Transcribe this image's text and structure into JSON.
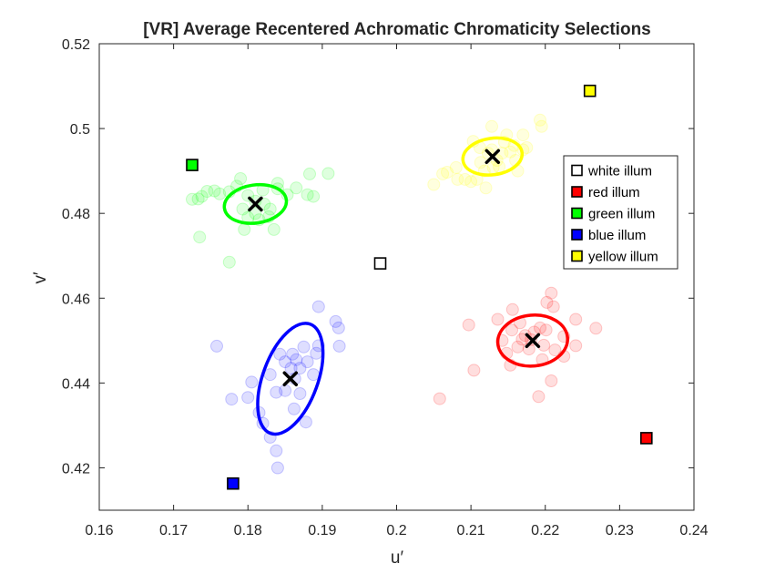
{
  "chart_data": {
    "type": "scatter",
    "title": "[VR] Average Recentered Achromatic Chromaticity Selections",
    "xlabel": "u′",
    "ylabel": "v′",
    "xlim": [
      0.16,
      0.24
    ],
    "ylim": [
      0.41,
      0.52
    ],
    "xticks": [
      0.16,
      0.17,
      0.18,
      0.19,
      0.2,
      0.21,
      0.22,
      0.23,
      0.24
    ],
    "yticks": [
      0.42,
      0.44,
      0.46,
      0.48,
      0.5,
      0.52
    ],
    "xtick_labels": [
      "0.16",
      "0.17",
      "0.18",
      "0.19",
      "0.2",
      "0.21",
      "0.22",
      "0.23",
      "0.24"
    ],
    "ytick_labels": [
      "0.42",
      "0.44",
      "0.46",
      "0.48",
      "0.5",
      "0.52"
    ],
    "grid": false,
    "legend_position": "right",
    "legend": [
      {
        "label": "white illum",
        "color": "#ffffff"
      },
      {
        "label": "red illum",
        "color": "#ff0000"
      },
      {
        "label": "green illum",
        "color": "#00ff00"
      },
      {
        "label": "blue illum",
        "color": "#0000ff"
      },
      {
        "label": "yellow illum",
        "color": "#ffff00"
      }
    ],
    "illuminants": [
      {
        "name": "white illum",
        "u": 0.1978,
        "v": 0.4682,
        "color": "#ffffff"
      },
      {
        "name": "red illum",
        "u": 0.2336,
        "v": 0.427,
        "color": "#ff0000"
      },
      {
        "name": "green illum",
        "u": 0.1725,
        "v": 0.4914,
        "color": "#00ff00"
      },
      {
        "name": "blue illum",
        "u": 0.178,
        "v": 0.4163,
        "color": "#0000ff"
      },
      {
        "name": "yellow illum",
        "u": 0.226,
        "v": 0.5089,
        "color": "#ffff00"
      }
    ],
    "means": [
      {
        "series": "red",
        "u": 0.2183,
        "v": 0.45,
        "color": "#ff0000"
      },
      {
        "series": "green",
        "u": 0.181,
        "v": 0.4822,
        "color": "#00ff00"
      },
      {
        "series": "blue",
        "u": 0.1857,
        "v": 0.441,
        "color": "#0000ff"
      },
      {
        "series": "yellow",
        "u": 0.2129,
        "v": 0.4934,
        "color": "#ffff00"
      }
    ],
    "ellipses": [
      {
        "series": "red",
        "cu": 0.2183,
        "cv": 0.45,
        "a": 0.0047,
        "b": 0.006,
        "rotation_deg": -5,
        "color": "#ff0000"
      },
      {
        "series": "green",
        "cu": 0.181,
        "cv": 0.4822,
        "a": 0.0042,
        "b": 0.0045,
        "rotation_deg": -8,
        "color": "#00ff00"
      },
      {
        "series": "blue",
        "cu": 0.1857,
        "cv": 0.441,
        "a": 0.0037,
        "b": 0.0137,
        "rotation_deg": 20,
        "color": "#0000ff"
      },
      {
        "series": "yellow",
        "cu": 0.2129,
        "cv": 0.4934,
        "a": 0.004,
        "b": 0.0043,
        "rotation_deg": -8,
        "color": "#ffff00"
      }
    ],
    "series": [
      {
        "series": "red",
        "color": "#ff0000",
        "points": [
          [
            0.2097,
            0.4537
          ],
          [
            0.2104,
            0.443
          ],
          [
            0.2058,
            0.4363
          ],
          [
            0.2136,
            0.455
          ],
          [
            0.2156,
            0.4573
          ],
          [
            0.2166,
            0.4542
          ],
          [
            0.2173,
            0.4512
          ],
          [
            0.2163,
            0.4485
          ],
          [
            0.2148,
            0.447
          ],
          [
            0.2153,
            0.4442
          ],
          [
            0.2181,
            0.4502
          ],
          [
            0.2193,
            0.453
          ],
          [
            0.2202,
            0.459
          ],
          [
            0.2208,
            0.4612
          ],
          [
            0.2211,
            0.458
          ],
          [
            0.2225,
            0.451
          ],
          [
            0.2241,
            0.455
          ],
          [
            0.2268,
            0.4529
          ],
          [
            0.2241,
            0.4488
          ],
          [
            0.2225,
            0.4463
          ],
          [
            0.2198,
            0.4489
          ],
          [
            0.2208,
            0.4405
          ],
          [
            0.2191,
            0.4368
          ],
          [
            0.2169,
            0.4503
          ],
          [
            0.2185,
            0.452
          ],
          [
            0.2178,
            0.448
          ],
          [
            0.2155,
            0.4525
          ],
          [
            0.2201,
            0.4525
          ],
          [
            0.2213,
            0.4478
          ],
          [
            0.2196,
            0.4455
          ],
          [
            0.2142,
            0.45
          ]
        ]
      },
      {
        "series": "green",
        "color": "#00ff00",
        "points": [
          [
            0.1725,
            0.4833
          ],
          [
            0.1733,
            0.4834
          ],
          [
            0.1738,
            0.484
          ],
          [
            0.1745,
            0.4852
          ],
          [
            0.1735,
            0.4744
          ],
          [
            0.1775,
            0.4685
          ],
          [
            0.1755,
            0.4853
          ],
          [
            0.1762,
            0.4846
          ],
          [
            0.1775,
            0.4851
          ],
          [
            0.1785,
            0.4864
          ],
          [
            0.179,
            0.4882
          ],
          [
            0.18,
            0.4842
          ],
          [
            0.181,
            0.4829
          ],
          [
            0.1822,
            0.4822
          ],
          [
            0.183,
            0.481
          ],
          [
            0.184,
            0.4858
          ],
          [
            0.1853,
            0.4844
          ],
          [
            0.1865,
            0.486
          ],
          [
            0.188,
            0.4844
          ],
          [
            0.1883,
            0.4893
          ],
          [
            0.1908,
            0.4894
          ],
          [
            0.1888,
            0.484
          ],
          [
            0.184,
            0.4871
          ],
          [
            0.1815,
            0.4785
          ],
          [
            0.18,
            0.479
          ],
          [
            0.1795,
            0.4762
          ],
          [
            0.1835,
            0.4762
          ],
          [
            0.1828,
            0.4792
          ],
          [
            0.182,
            0.4855
          ],
          [
            0.181,
            0.48
          ],
          [
            0.1793,
            0.481
          ]
        ]
      },
      {
        "series": "blue",
        "color": "#0000ff",
        "points": [
          [
            0.1758,
            0.4487
          ],
          [
            0.1778,
            0.4362
          ],
          [
            0.18,
            0.4366
          ],
          [
            0.1805,
            0.4402
          ],
          [
            0.1815,
            0.433
          ],
          [
            0.182,
            0.4305
          ],
          [
            0.183,
            0.442
          ],
          [
            0.1838,
            0.4378
          ],
          [
            0.183,
            0.4272
          ],
          [
            0.1838,
            0.424
          ],
          [
            0.184,
            0.42
          ],
          [
            0.185,
            0.445
          ],
          [
            0.1858,
            0.4435
          ],
          [
            0.1863,
            0.441
          ],
          [
            0.186,
            0.4468
          ],
          [
            0.187,
            0.4435
          ],
          [
            0.1875,
            0.4485
          ],
          [
            0.188,
            0.445
          ],
          [
            0.1888,
            0.442
          ],
          [
            0.1892,
            0.447
          ],
          [
            0.1895,
            0.4488
          ],
          [
            0.1895,
            0.458
          ],
          [
            0.1918,
            0.4545
          ],
          [
            0.1922,
            0.453
          ],
          [
            0.1923,
            0.4487
          ],
          [
            0.1878,
            0.4308
          ],
          [
            0.185,
            0.4382
          ],
          [
            0.1862,
            0.4339
          ],
          [
            0.187,
            0.4375
          ],
          [
            0.1843,
            0.4468
          ],
          [
            0.1865,
            0.4455
          ]
        ]
      },
      {
        "series": "yellow",
        "color": "#ffff00",
        "points": [
          [
            0.205,
            0.4868
          ],
          [
            0.2062,
            0.4893
          ],
          [
            0.2068,
            0.4897
          ],
          [
            0.208,
            0.4908
          ],
          [
            0.2082,
            0.488
          ],
          [
            0.2092,
            0.488
          ],
          [
            0.21,
            0.4875
          ],
          [
            0.2103,
            0.497
          ],
          [
            0.2113,
            0.492
          ],
          [
            0.2118,
            0.49
          ],
          [
            0.2123,
            0.4942
          ],
          [
            0.2128,
            0.495
          ],
          [
            0.213,
            0.4908
          ],
          [
            0.2128,
            0.5005
          ],
          [
            0.2142,
            0.4942
          ],
          [
            0.2145,
            0.4968
          ],
          [
            0.2148,
            0.4985
          ],
          [
            0.2153,
            0.4945
          ],
          [
            0.216,
            0.4925
          ],
          [
            0.2163,
            0.49
          ],
          [
            0.217,
            0.495
          ],
          [
            0.217,
            0.4985
          ],
          [
            0.2175,
            0.4955
          ],
          [
            0.2193,
            0.502
          ],
          [
            0.2195,
            0.5005
          ],
          [
            0.212,
            0.486
          ],
          [
            0.2138,
            0.491
          ],
          [
            0.2108,
            0.488
          ],
          [
            0.2158,
            0.496
          ],
          [
            0.2112,
            0.4955
          ],
          [
            0.2135,
            0.4925
          ]
        ]
      }
    ]
  }
}
